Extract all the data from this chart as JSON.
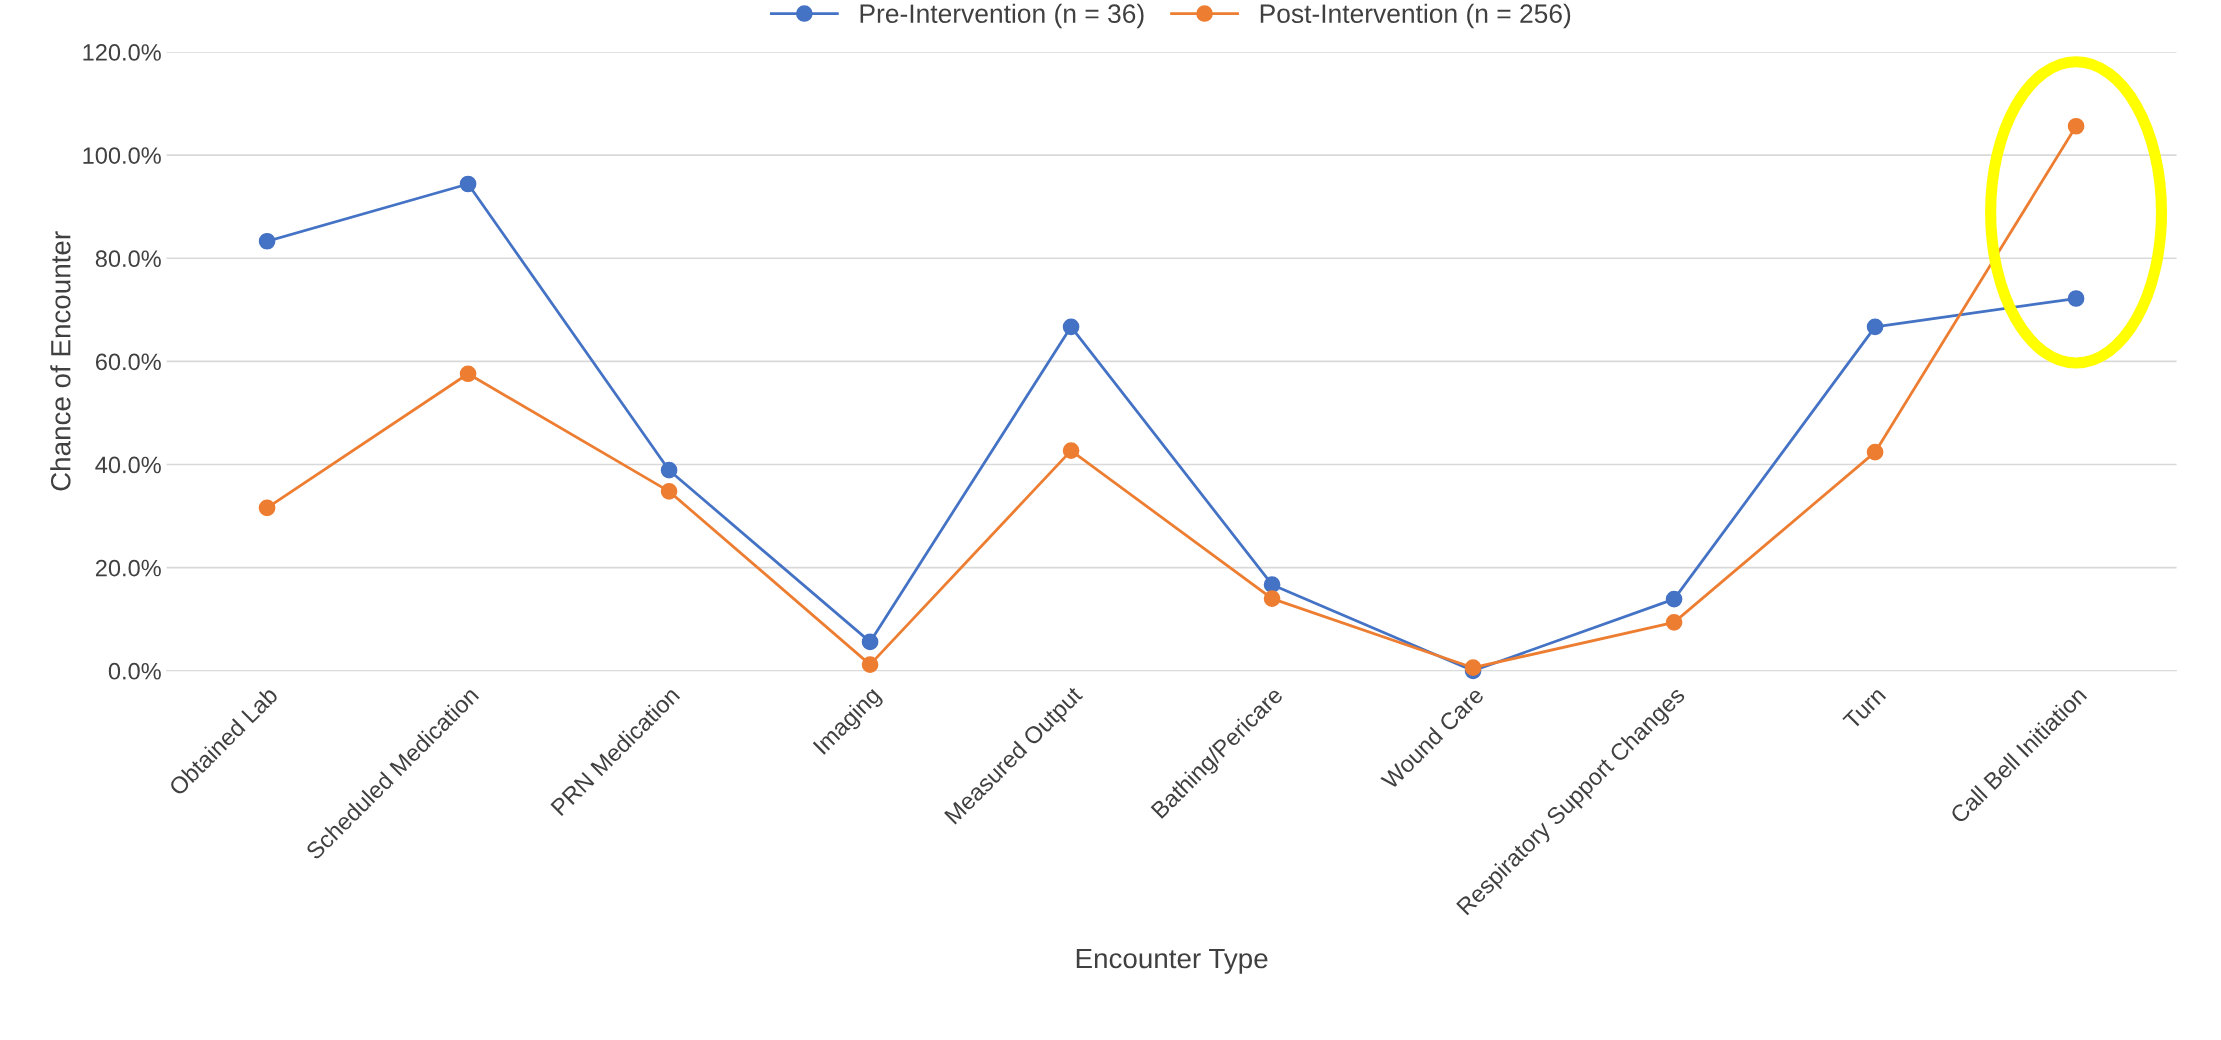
{
  "chart_data": {
    "type": "line",
    "xlabel": "Encounter Type",
    "ylabel": "Chance of Encounter",
    "categories": [
      "Obtained Lab",
      "Scheduled Medication",
      "PRN Medication",
      "Imaging",
      "Measured Output",
      "Bathing/Pericare",
      "Wound Care",
      "Respiratory Support Changes",
      "Turn",
      "Call Bell Initiation"
    ],
    "series": [
      {
        "name": "Pre-Intervention (n = 36)",
        "color": "#4472c4",
        "values": [
          83.3,
          94.4,
          38.9,
          5.6,
          66.7,
          16.7,
          0,
          13.9,
          66.7,
          72.2
        ]
      },
      {
        "name": "Post-Intervention (n = 256)",
        "color": "#ed7d31",
        "values": [
          31.6,
          57.6,
          34.8,
          1.2,
          42.7,
          14.0,
          0.6,
          9.4,
          42.4,
          105.6
        ]
      }
    ],
    "ylim": [
      0,
      120
    ],
    "yticks": [
      {
        "value": 0,
        "label": "0.0%"
      },
      {
        "value": 20,
        "label": "20.0%"
      },
      {
        "value": 40,
        "label": "40.0%"
      },
      {
        "value": 60,
        "label": "60.0%"
      },
      {
        "value": 80,
        "label": "80.0%"
      },
      {
        "value": 100,
        "label": "100.0%"
      },
      {
        "value": 120,
        "label": "120.0%"
      }
    ],
    "grid": "y",
    "legend": "top",
    "marker": "circle",
    "line_style": "solid"
  }
}
